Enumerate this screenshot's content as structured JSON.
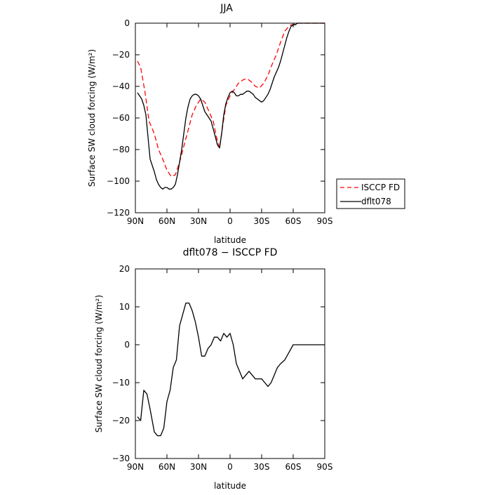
{
  "chart_data": [
    {
      "type": "line",
      "title": "JJA",
      "xlabel": "latitude",
      "ylabel": "Surface SW cloud forcing (W/m²)",
      "xlim": [
        90,
        -90
      ],
      "ylim": [
        -120,
        0
      ],
      "x_ticks": [
        90,
        60,
        30,
        0,
        -30,
        -60,
        -90
      ],
      "x_tick_labels": [
        "90N",
        "60N",
        "30N",
        "0",
        "30S",
        "60S",
        "90S"
      ],
      "y_ticks": [
        0,
        -20,
        -40,
        -60,
        -80,
        -100,
        -120
      ],
      "y_tick_labels": [
        "0",
        "−20",
        "−40",
        "−60",
        "−80",
        "−100",
        "−120"
      ],
      "legend": {
        "location": "right"
      },
      "series": [
        {
          "name": "ISCCP FD",
          "color": "#ff0000",
          "dash": "dashed",
          "x": [
            88,
            85,
            81,
            77,
            72,
            68,
            64,
            60,
            56,
            52,
            48,
            44,
            40,
            36,
            32,
            28,
            24,
            20,
            16,
            13,
            10,
            7,
            4,
            0,
            -4,
            -8,
            -12,
            -16,
            -20,
            -24,
            -28,
            -32,
            -36,
            -40,
            -44,
            -48,
            -52,
            -56,
            -58,
            -60,
            -62,
            -64,
            -66,
            -68,
            -70,
            -75,
            -80,
            -85,
            -90
          ],
          "y": [
            -24,
            -28,
            -43,
            -62,
            -70,
            -80,
            -86,
            -93,
            -97,
            -96,
            -88,
            -78,
            -68,
            -58,
            -52,
            -48,
            -50,
            -56,
            -62,
            -72,
            -79,
            -65,
            -52,
            -46,
            -42,
            -38,
            -36,
            -35,
            -37,
            -40,
            -41,
            -38,
            -33,
            -26,
            -20,
            -12,
            -5,
            -2,
            -1,
            -1,
            0,
            0,
            0,
            0,
            0,
            0,
            0,
            0,
            0
          ]
        },
        {
          "name": "dflt078",
          "color": "#000000",
          "dash": "solid",
          "x": [
            88,
            86,
            84,
            82,
            80,
            78,
            76,
            74,
            72,
            70,
            68,
            66,
            64,
            62,
            60,
            58,
            56,
            54,
            52,
            50,
            48,
            46,
            44,
            42,
            40,
            38,
            36,
            34,
            32,
            30,
            28,
            26,
            24,
            22,
            20,
            18,
            16,
            14,
            12,
            10,
            8,
            6,
            4,
            2,
            0,
            -2,
            -4,
            -6,
            -8,
            -10,
            -12,
            -14,
            -16,
            -18,
            -20,
            -22,
            -24,
            -26,
            -28,
            -30,
            -32,
            -34,
            -36,
            -38,
            -40,
            -42,
            -44,
            -46,
            -48,
            -50,
            -52,
            -54,
            -56,
            -58,
            -60,
            -62,
            -64,
            -66,
            -68,
            -70,
            -75,
            -80,
            -85,
            -90
          ],
          "y": [
            -44,
            -46,
            -48,
            -52,
            -58,
            -72,
            -86,
            -90,
            -94,
            -99,
            -102,
            -104,
            -105,
            -104,
            -104,
            -105,
            -105,
            -104,
            -102,
            -96,
            -88,
            -80,
            -70,
            -60,
            -53,
            -48,
            -46,
            -45,
            -45,
            -46,
            -48,
            -52,
            -56,
            -58,
            -60,
            -62,
            -67,
            -72,
            -77,
            -79,
            -70,
            -58,
            -51,
            -47,
            -44,
            -43,
            -44,
            -46,
            -46,
            -45,
            -45,
            -44,
            -43,
            -43,
            -44,
            -45,
            -47,
            -48,
            -49,
            -50,
            -49,
            -47,
            -45,
            -42,
            -38,
            -34,
            -31,
            -28,
            -24,
            -19,
            -14,
            -9,
            -5,
            -2,
            -1,
            -1,
            0,
            0,
            0,
            0,
            0,
            0,
            0,
            0
          ]
        }
      ]
    },
    {
      "type": "line",
      "title": "dflt078 − ISCCP FD",
      "xlabel": "latitude",
      "ylabel": "Surface SW cloud forcing (W/m²)",
      "xlim": [
        90,
        -90
      ],
      "ylim": [
        -30,
        20
      ],
      "x_ticks": [
        90,
        60,
        30,
        0,
        -30,
        -60,
        -90
      ],
      "x_tick_labels": [
        "90N",
        "60N",
        "30N",
        "0",
        "30S",
        "60S",
        "90S"
      ],
      "y_ticks": [
        20,
        10,
        0,
        -10,
        -20,
        -30
      ],
      "y_tick_labels": [
        "20",
        "10",
        "0",
        "−10",
        "−20",
        "−30"
      ],
      "series": [
        {
          "color": "#000000",
          "dash": "solid",
          "x": [
            88,
            85,
            82,
            79,
            76,
            72,
            69,
            66,
            63,
            60,
            57,
            54,
            51,
            48,
            45,
            42,
            39,
            36,
            33,
            30,
            27,
            24,
            21,
            18,
            15,
            12,
            9,
            6,
            3,
            0,
            -3,
            -6,
            -9,
            -12,
            -15,
            -18,
            -21,
            -24,
            -27,
            -30,
            -33,
            -36,
            -39,
            -42,
            -45,
            -48,
            -52,
            -56,
            -60,
            -63,
            -66,
            -69,
            -72,
            -76,
            -80,
            -85,
            -90
          ],
          "y": [
            -19,
            -20,
            -12,
            -13,
            -17,
            -23,
            -24,
            -24,
            -22,
            -15,
            -12,
            -6,
            -4,
            5,
            8,
            11,
            11,
            9,
            6,
            2,
            -3,
            -3,
            -1,
            0,
            2,
            2,
            1,
            3,
            2,
            3,
            0,
            -5,
            -7,
            -9,
            -8,
            -7,
            -8,
            -9,
            -9,
            -9,
            -10,
            -11,
            -10,
            -8,
            -6,
            -5,
            -4,
            -2,
            0,
            0,
            0,
            0,
            0,
            0,
            0,
            0,
            0
          ]
        }
      ]
    }
  ]
}
